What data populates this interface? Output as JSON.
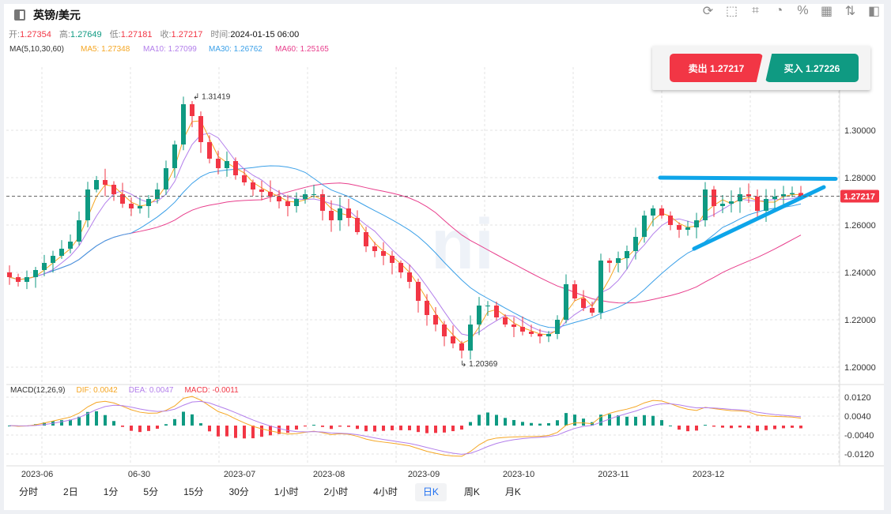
{
  "header": {
    "title": "英镑/美元",
    "toolbar_icons": [
      "refresh-icon",
      "draw-icon",
      "indicator-icon",
      "pie-chart-icon",
      "percent-icon",
      "grid-icon",
      "sort-icon",
      "layout-icon"
    ]
  },
  "ohlc": {
    "open_label": "开:",
    "open": "1.27354",
    "high_label": "高:",
    "high": "1.27649",
    "low_label": "低:",
    "low": "1.27181",
    "close_label": "收:",
    "close": "1.27217",
    "time_label": "时间:",
    "time": "2024-01-15 06:00"
  },
  "ma": {
    "label": "MA(5,10,30,60)",
    "ma5": "MA5: 1.27348",
    "ma10": "MA10: 1.27099",
    "ma30": "MA30: 1.26762",
    "ma60": "MA60: 1.25165"
  },
  "macd": {
    "label": "MACD(12,26,9)",
    "dif": "DIF: 0.0042",
    "dea": "DEA: 0.0047",
    "macd": "MACD: -0.0011"
  },
  "trade": {
    "sell": "卖出 1.27217",
    "buy": "买入 1.27226"
  },
  "colors": {
    "up": "#0f9a82",
    "down": "#f23645",
    "ma5": "#f5a623",
    "ma10": "#b37feb",
    "ma30": "#3ba0e8",
    "ma60": "#e83e8c",
    "trendline": "#0ea5e9"
  },
  "periods": [
    "分时",
    "2日",
    "1分",
    "5分",
    "15分",
    "30分",
    "1小时",
    "2小时",
    "4小时",
    "日K",
    "周K",
    "月K"
  ],
  "active_period": "日K",
  "chart_data": {
    "type": "candlestick",
    "price_ticks": [
      "1.30000",
      "1.28000",
      "1.26000",
      "1.24000",
      "1.22000",
      "1.20000"
    ],
    "macd_ticks": [
      "0.0120",
      "0.0040",
      "-0.0040",
      "-0.0120"
    ],
    "x_ticks": [
      "2023-06",
      "06-30",
      "2023-07",
      "2023-08",
      "2023-09",
      "2023-10",
      "2023-11",
      "2023-12"
    ],
    "current_price": "1.27217",
    "max_label": "1.31419",
    "min_label": "1.20369",
    "closes": [
      1.238,
      1.236,
      1.238,
      1.241,
      1.244,
      1.247,
      1.25,
      1.253,
      1.262,
      1.275,
      1.279,
      1.277,
      1.273,
      1.269,
      1.267,
      1.268,
      1.271,
      1.275,
      1.284,
      1.294,
      1.311,
      1.306,
      1.295,
      1.288,
      1.284,
      1.287,
      1.281,
      1.278,
      1.275,
      1.274,
      1.272,
      1.27,
      1.268,
      1.271,
      1.273,
      1.273,
      1.266,
      1.262,
      1.267,
      1.263,
      1.257,
      1.251,
      1.249,
      1.247,
      1.244,
      1.24,
      1.236,
      1.228,
      1.222,
      1.218,
      1.213,
      1.21,
      1.207,
      1.218,
      1.226,
      1.226,
      1.221,
      1.218,
      1.217,
      1.215,
      1.214,
      1.213,
      1.214,
      1.22,
      1.235,
      1.229,
      1.225,
      1.223,
      1.245,
      1.244,
      1.246,
      1.249,
      1.255,
      1.264,
      1.267,
      1.264,
      1.26,
      1.258,
      1.259,
      1.262,
      1.275,
      1.268,
      1.269,
      1.27,
      1.273,
      1.272,
      1.266,
      1.271,
      1.272,
      1.273,
      1.2735,
      1.27217
    ],
    "last_candle": {
      "open": 1.27354,
      "high": 1.27649,
      "low": 1.27181,
      "close": 1.27217
    },
    "trendlines": [
      {
        "from": 1.28,
        "to": 1.2795
      },
      {
        "from": 1.25,
        "to": 1.276
      }
    ]
  }
}
